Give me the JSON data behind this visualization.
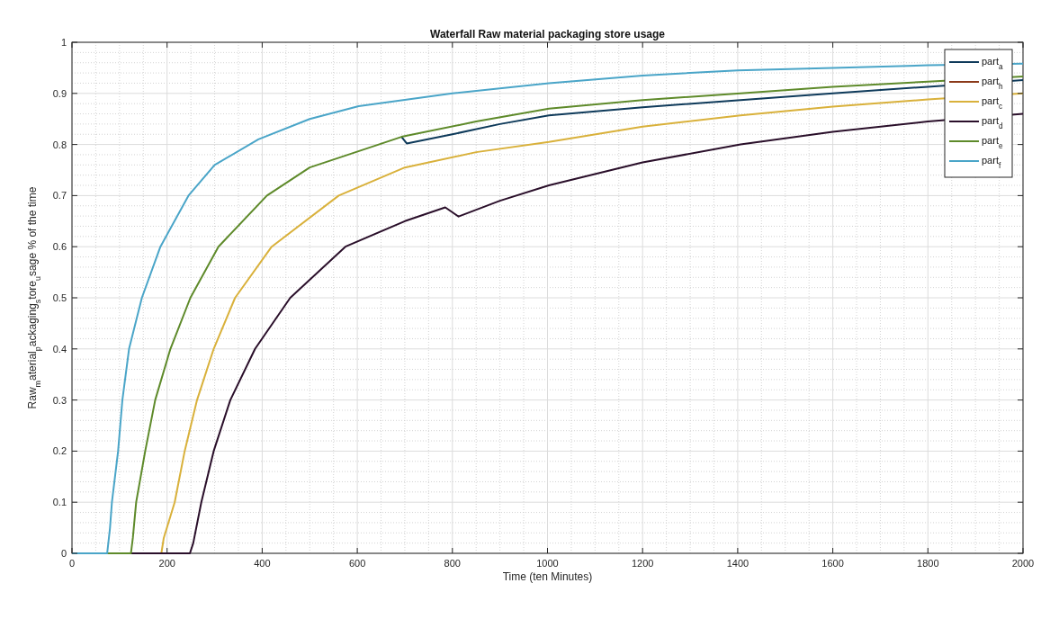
{
  "chart_data": {
    "type": "line",
    "title": "Waterfall Raw material packaging store usage",
    "xlabel": "Time (ten Minutes)",
    "ylabel": "Raw$_{m}$aterial$_{p}$ackaging$_{s}$tore$_{u}$sage % of the time",
    "xlim": [
      0,
      2000
    ],
    "xticks": [
      0,
      200,
      400,
      600,
      800,
      1000,
      1200,
      1400,
      1600,
      1800,
      2000
    ],
    "ylim": [
      0,
      1
    ],
    "yticks": [
      0,
      0.1,
      0.2,
      0.3,
      0.4,
      0.5,
      0.6,
      0.7,
      0.8,
      0.9,
      1
    ],
    "grid": true,
    "legend": "top right",
    "marker": "none",
    "line_style": "solid",
    "series": [
      {
        "name": "part$_{a}$",
        "color": "#0e3a5a",
        "x": [
          693,
          704,
          800,
          900,
          1003,
          1200,
          1406,
          1600,
          1800,
          2000
        ],
        "values": [
          0.815,
          0.802,
          0.82,
          0.84,
          0.857,
          0.873,
          0.887,
          0.9,
          0.913,
          0.926
        ]
      },
      {
        "name": "part$_{h}$",
        "color": "#8b3a1a"
      },
      {
        "name": "part$_{c}$",
        "color": "#d9b13b",
        "x": [
          0,
          188,
          193,
          216,
          237,
          263,
          298,
          343,
          420,
          561,
          700,
          850,
          1003,
          1200,
          1406,
          1600,
          1800,
          2000
        ],
        "values": [
          0,
          0,
          0.03,
          0.1,
          0.2,
          0.3,
          0.4,
          0.5,
          0.6,
          0.7,
          0.755,
          0.785,
          0.805,
          0.835,
          0.857,
          0.874,
          0.888,
          0.9
        ]
      },
      {
        "name": "part$_{d}$",
        "color": "#2a0f2a",
        "x": [
          0,
          248,
          255,
          272,
          298,
          333,
          385,
          459,
          575,
          700,
          785,
          813,
          900,
          1003,
          1200,
          1406,
          1600,
          1800,
          2000
        ],
        "values": [
          0,
          0,
          0.02,
          0.1,
          0.2,
          0.3,
          0.4,
          0.5,
          0.6,
          0.65,
          0.677,
          0.659,
          0.69,
          0.72,
          0.765,
          0.8,
          0.825,
          0.845,
          0.86
        ]
      },
      {
        "name": "part$_{e}$",
        "color": "#5e8a2a",
        "x": [
          0,
          124,
          128,
          135,
          154,
          175,
          207,
          249,
          308,
          410,
          500,
          645,
          693,
          850,
          1003,
          1200,
          1406,
          1600,
          1800,
          2000
        ],
        "values": [
          0,
          0,
          0.03,
          0.1,
          0.2,
          0.3,
          0.4,
          0.5,
          0.6,
          0.7,
          0.755,
          0.8,
          0.815,
          0.845,
          0.87,
          0.887,
          0.9,
          0.913,
          0.923,
          0.933
        ]
      },
      {
        "name": "part$_{f}$",
        "color": "#4aa5c8",
        "x": [
          0,
          74,
          80,
          84,
          97,
          106,
          120,
          147,
          186,
          245,
          300,
          392,
          500,
          603,
          800,
          1003,
          1200,
          1400,
          1600,
          1800,
          2000
        ],
        "values": [
          0,
          0,
          0.05,
          0.1,
          0.2,
          0.3,
          0.4,
          0.5,
          0.6,
          0.7,
          0.76,
          0.81,
          0.85,
          0.875,
          0.9,
          0.92,
          0.935,
          0.945,
          0.95,
          0.955,
          0.958
        ]
      }
    ]
  }
}
